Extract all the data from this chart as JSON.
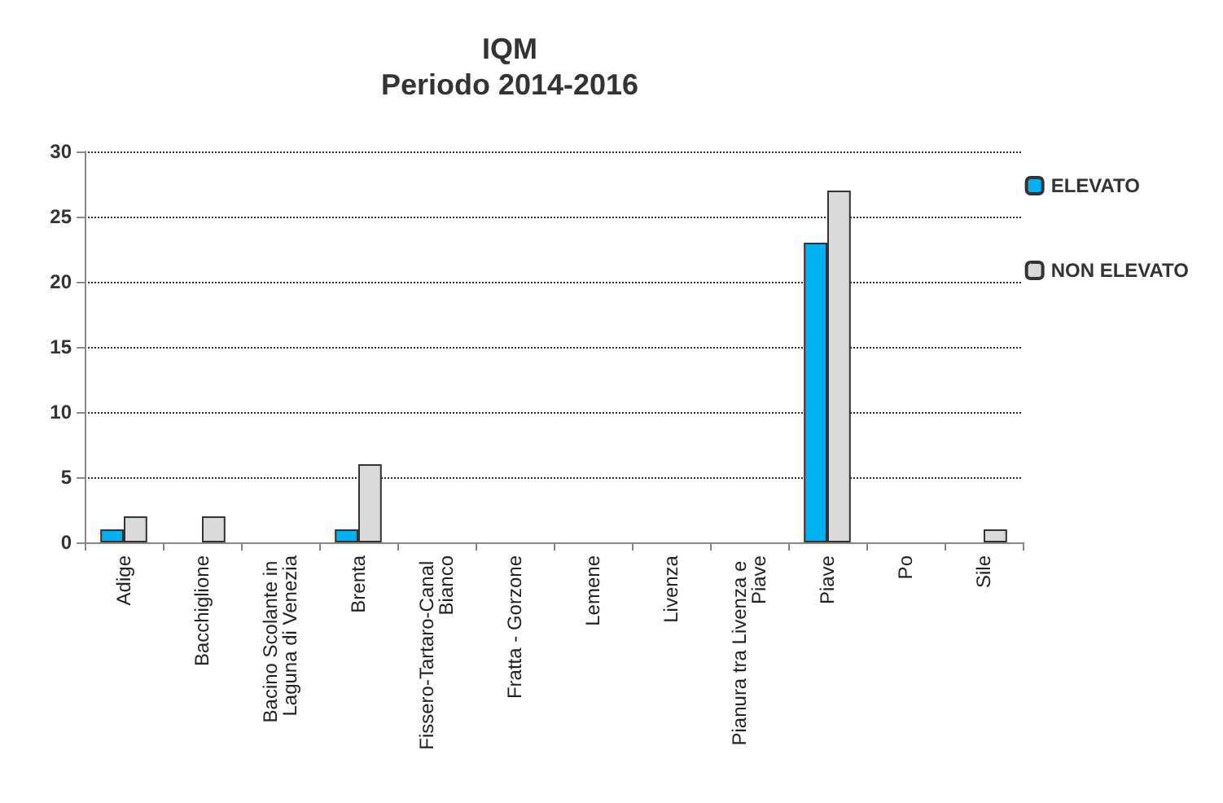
{
  "chart_data": {
    "type": "bar",
    "title": "IQM",
    "subtitle": "Periodo 2014-2016",
    "categories": [
      "Adige",
      "Bacchiglione",
      "Bacino Scolante in Laguna di Venezia",
      "Brenta",
      "Fissero-Tartaro-Canal Bianco",
      "Fratta - Gorzone",
      "Lemene",
      "Livenza",
      "Pianura tra Livenza e Piave",
      "Piave",
      "Po",
      "Sile"
    ],
    "series": [
      {
        "name": "ELEVATO",
        "color": "#00b0f0",
        "values": [
          1,
          null,
          null,
          1,
          null,
          null,
          null,
          null,
          null,
          23,
          null,
          null
        ]
      },
      {
        "name": "NON ELEVATO",
        "color": "#d9d9d9",
        "values": [
          2,
          2,
          null,
          6,
          null,
          null,
          null,
          null,
          null,
          27,
          null,
          1
        ]
      }
    ],
    "ylim": [
      0,
      30
    ],
    "yticks": [
      0,
      5,
      10,
      15,
      20,
      25,
      30
    ],
    "grid": "y",
    "legend": "right"
  }
}
